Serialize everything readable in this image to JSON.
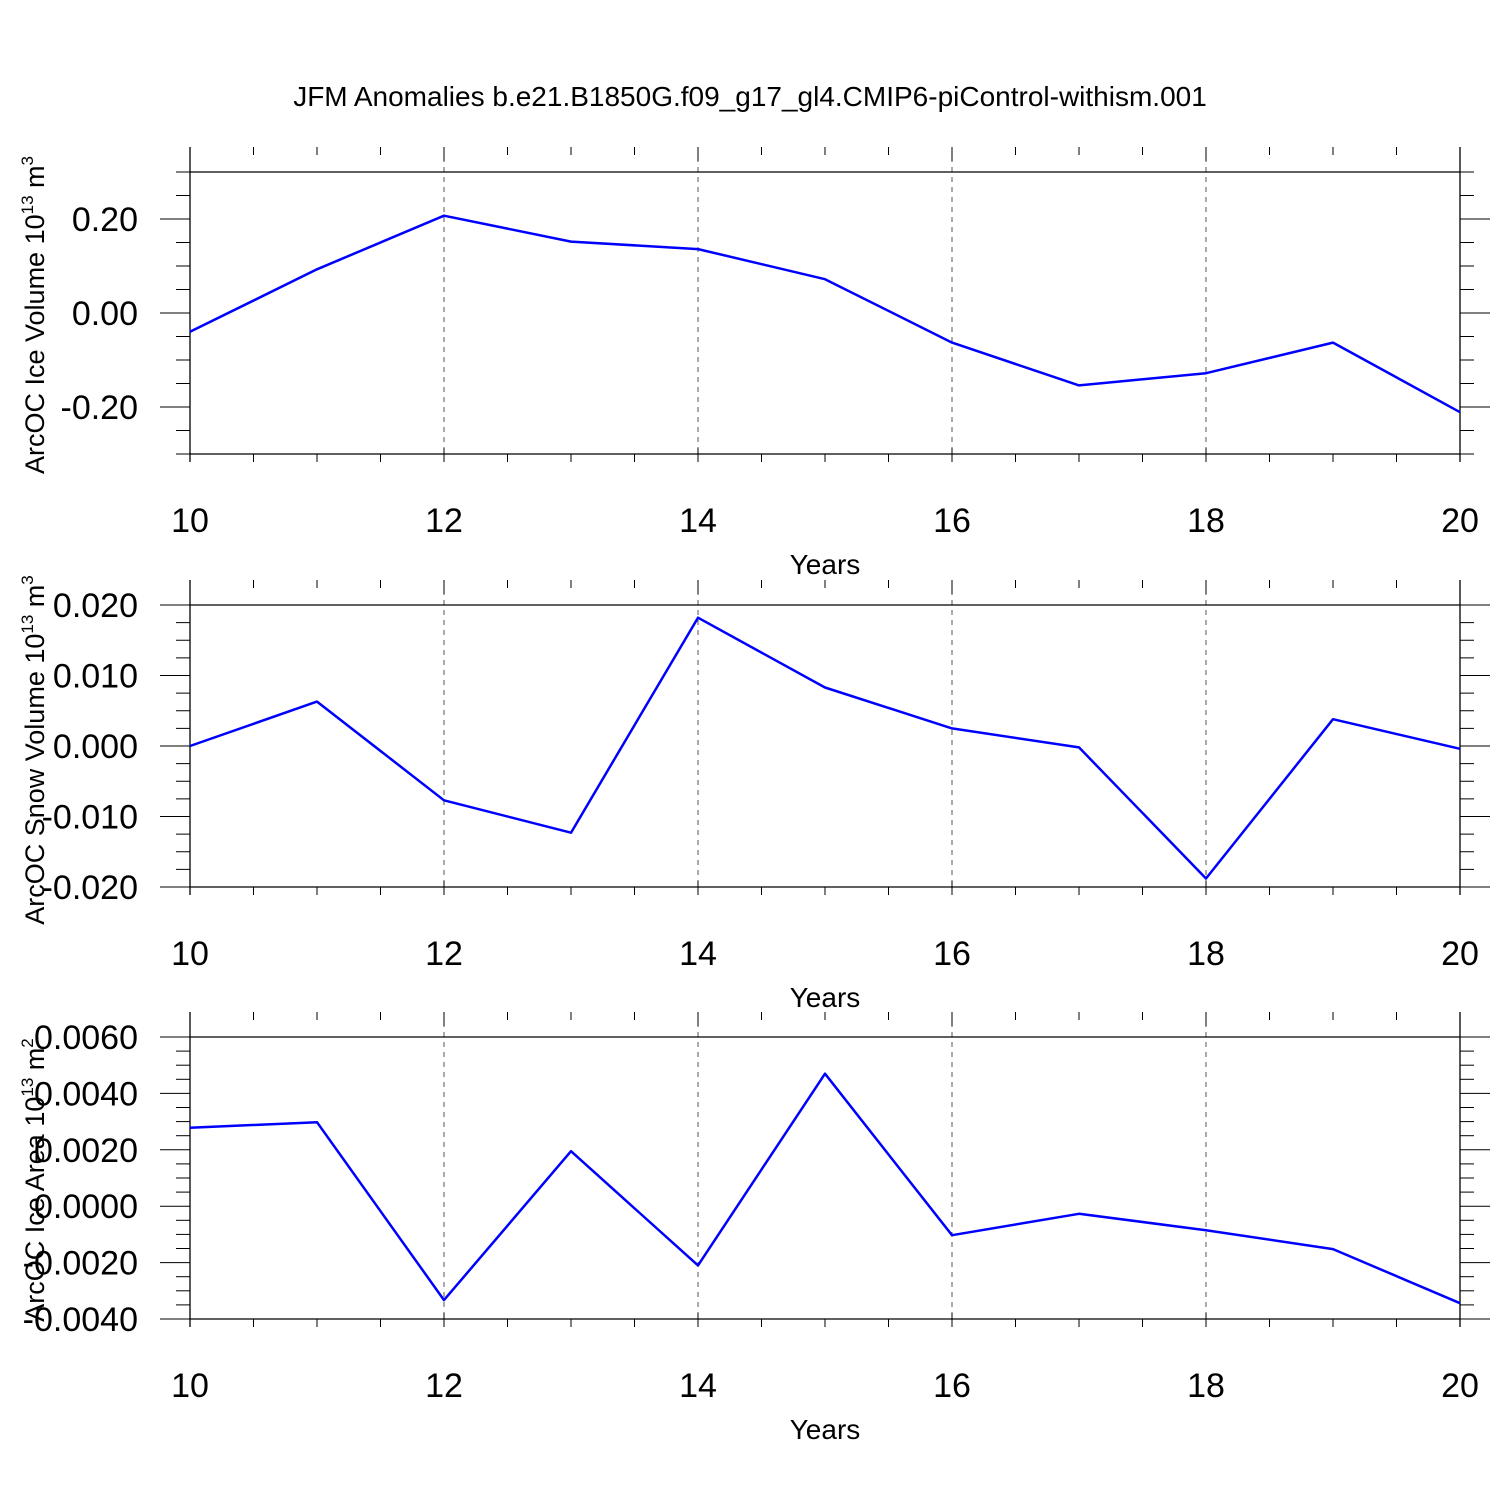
{
  "page_title": "JFM Anomalies b.e21.B1850G.f09_g17_gl4.CMIP6-piControl-withism.001",
  "colors": {
    "line": "#0000ff",
    "axis": "#000000",
    "grid": "#555555"
  },
  "chart_data": [
    {
      "type": "line",
      "xlabel": "Years",
      "ylabel": "ArcOC Ice Volume 10",
      "ylabel_sup": "13",
      "ylabel_unit": " m",
      "ylabel_unit_sup": "3",
      "xlim": [
        10,
        20
      ],
      "ylim": [
        -0.3,
        0.3
      ],
      "x_ticks": [
        10,
        12,
        14,
        16,
        18,
        20
      ],
      "y_ticks": [
        -0.2,
        0,
        0.2
      ],
      "y_tick_labels": [
        "-0.20",
        "0.00",
        "0.20"
      ],
      "y_minor_step": 0.05,
      "grid": "vertical dashed at major x ticks",
      "x": [
        10,
        11,
        12,
        13,
        14,
        15,
        16,
        17,
        18,
        19,
        20
      ],
      "values": [
        -0.04,
        0.093,
        0.207,
        0.152,
        0.136,
        0.072,
        -0.063,
        -0.154,
        -0.128,
        -0.063,
        -0.211
      ]
    },
    {
      "type": "line",
      "xlabel": "Years",
      "ylabel": "ArcOC Snow Volume 10",
      "ylabel_sup": "13",
      "ylabel_unit": " m",
      "ylabel_unit_sup": "3",
      "xlim": [
        10,
        20
      ],
      "ylim": [
        -0.02,
        0.02
      ],
      "x_ticks": [
        10,
        12,
        14,
        16,
        18,
        20
      ],
      "y_ticks": [
        -0.02,
        -0.01,
        0,
        0.01,
        0.02
      ],
      "y_tick_labels": [
        "-0.020",
        "-0.010",
        "0.000",
        "0.010",
        "0.020"
      ],
      "y_minor_step": 0.0025,
      "grid": "vertical dashed at major x ticks",
      "x": [
        10,
        11,
        12,
        13,
        14,
        15,
        16,
        17,
        18,
        19,
        20
      ],
      "values": [
        0.0,
        0.0063,
        -0.0077,
        -0.0123,
        0.0182,
        0.0083,
        0.0025,
        -0.0002,
        -0.0188,
        0.0038,
        -0.0004
      ]
    },
    {
      "type": "line",
      "xlabel": "Years",
      "ylabel": "ArcOC Ice Area 10",
      "ylabel_sup": "13",
      "ylabel_unit": " m",
      "ylabel_unit_sup": "2",
      "xlim": [
        10,
        20
      ],
      "ylim": [
        -0.004,
        0.006
      ],
      "x_ticks": [
        10,
        12,
        14,
        16,
        18,
        20
      ],
      "y_ticks": [
        -0.004,
        -0.002,
        0,
        0.002,
        0.004,
        0.006
      ],
      "y_tick_labels": [
        "-0.0040",
        "-0.0020",
        "0.0000",
        "0.0020",
        "0.0040",
        "0.0060"
      ],
      "y_minor_step": 0.0005,
      "grid": "vertical dashed at major x ticks",
      "x": [
        10,
        11,
        12,
        13,
        14,
        15,
        16,
        17,
        18,
        19,
        20
      ],
      "values": [
        0.00278,
        0.00298,
        -0.00333,
        0.00195,
        -0.0021,
        0.0047,
        -0.00103,
        -0.00027,
        -0.00085,
        -0.00152,
        -0.00344
      ]
    }
  ]
}
